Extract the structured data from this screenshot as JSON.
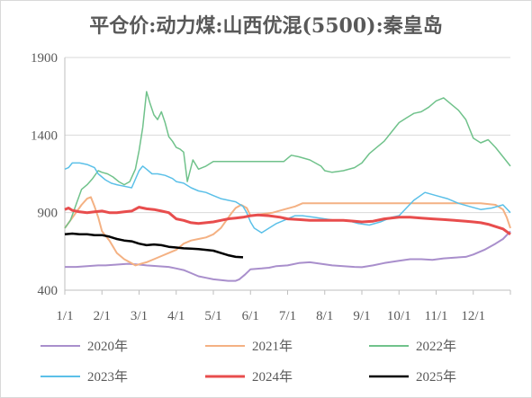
{
  "chart_data": {
    "type": "line",
    "title": "平仓价:动力煤:山西优混(5500):秦皇岛",
    "xlabel": "",
    "ylabel": "",
    "ylim": [
      400,
      1900
    ],
    "yticks": [
      400,
      900,
      1400,
      1900
    ],
    "x_domain": [
      0,
      12
    ],
    "xticks": [
      {
        "label": "1/1",
        "pos": 0
      },
      {
        "label": "2/1",
        "pos": 1
      },
      {
        "label": "3/1",
        "pos": 2
      },
      {
        "label": "4/1",
        "pos": 3
      },
      {
        "label": "5/1",
        "pos": 4
      },
      {
        "label": "6/1",
        "pos": 5
      },
      {
        "label": "7/1",
        "pos": 6
      },
      {
        "label": "8/1",
        "pos": 7
      },
      {
        "label": "9/1",
        "pos": 8
      },
      {
        "label": "10/1",
        "pos": 9
      },
      {
        "label": "11/1",
        "pos": 10
      },
      {
        "label": "12/1",
        "pos": 11
      }
    ],
    "grid": "horizontal",
    "legend_position": "bottom",
    "series": [
      {
        "name": "2020年",
        "color": "#a98fcc",
        "width": 2,
        "x": [
          0,
          0.3,
          0.6,
          0.9,
          1.1,
          1.4,
          1.7,
          2.0,
          2.2,
          2.5,
          2.8,
          3.0,
          3.2,
          3.4,
          3.6,
          3.8,
          4.0,
          4.2,
          4.4,
          4.6,
          4.7,
          4.85,
          5.0,
          5.3,
          5.5,
          5.7,
          6.0,
          6.3,
          6.6,
          6.9,
          7.2,
          7.5,
          7.8,
          8.0,
          8.3,
          8.6,
          9.0,
          9.3,
          9.6,
          9.9,
          10.2,
          10.5,
          10.8,
          11.0,
          11.3,
          11.6,
          11.8,
          12.0
        ],
        "y": [
          550,
          550,
          555,
          560,
          560,
          565,
          570,
          565,
          560,
          555,
          550,
          540,
          530,
          510,
          490,
          480,
          470,
          465,
          460,
          460,
          470,
          500,
          535,
          540,
          545,
          555,
          560,
          575,
          580,
          570,
          560,
          555,
          550,
          548,
          560,
          575,
          590,
          600,
          600,
          595,
          605,
          610,
          615,
          630,
          660,
          700,
          730,
          780
        ]
      },
      {
        "name": "2021年",
        "color": "#f4b183",
        "width": 2,
        "x": [
          0,
          0.15,
          0.3,
          0.45,
          0.6,
          0.7,
          0.8,
          0.9,
          1.0,
          1.2,
          1.4,
          1.6,
          1.75,
          1.9,
          2.05,
          2.2,
          2.4,
          2.6,
          2.8,
          3.0,
          3.2,
          3.4,
          3.6,
          3.8,
          4.0,
          4.2,
          4.35,
          4.5,
          4.6,
          4.75,
          4.9,
          5.0,
          5.3,
          5.6,
          5.9,
          6.2,
          6.4,
          6.8,
          7.2,
          7.6,
          8.0,
          8.4,
          8.8,
          9.2,
          9.6,
          10.0,
          10.4,
          10.8,
          11.2,
          11.6,
          11.8,
          11.9,
          12.0
        ],
        "y": [
          800,
          850,
          900,
          950,
          990,
          1000,
          940,
          870,
          780,
          720,
          640,
          600,
          580,
          560,
          570,
          580,
          600,
          620,
          640,
          660,
          700,
          720,
          730,
          740,
          760,
          800,
          850,
          900,
          930,
          950,
          930,
          880,
          890,
          900,
          920,
          940,
          960,
          960,
          960,
          960,
          960,
          960,
          960,
          960,
          960,
          960,
          960,
          960,
          960,
          950,
          920,
          870,
          800
        ]
      },
      {
        "name": "2022年",
        "color": "#70c28b",
        "width": 1.5,
        "x": [
          0,
          0.15,
          0.3,
          0.45,
          0.6,
          0.75,
          0.9,
          1.0,
          1.15,
          1.3,
          1.45,
          1.6,
          1.75,
          1.9,
          2.0,
          2.1,
          2.2,
          2.3,
          2.4,
          2.5,
          2.6,
          2.7,
          2.8,
          2.9,
          3.0,
          3.1,
          3.2,
          3.3,
          3.45,
          3.6,
          3.8,
          4.0,
          4.4,
          4.8,
          5.2,
          5.6,
          5.9,
          6.0,
          6.1,
          6.3,
          6.6,
          6.9,
          7.0,
          7.2,
          7.5,
          7.8,
          8.0,
          8.2,
          8.4,
          8.6,
          8.8,
          9.0,
          9.2,
          9.4,
          9.6,
          9.8,
          10.0,
          10.2,
          10.4,
          10.6,
          10.8,
          11.0,
          11.2,
          11.4,
          11.6,
          11.8,
          12.0
        ],
        "y": [
          800,
          850,
          950,
          1050,
          1080,
          1120,
          1170,
          1160,
          1150,
          1130,
          1100,
          1080,
          1100,
          1180,
          1300,
          1450,
          1680,
          1600,
          1530,
          1500,
          1550,
          1480,
          1390,
          1360,
          1320,
          1310,
          1290,
          1100,
          1240,
          1180,
          1200,
          1230,
          1230,
          1230,
          1230,
          1230,
          1230,
          1250,
          1270,
          1260,
          1240,
          1200,
          1170,
          1160,
          1170,
          1190,
          1220,
          1280,
          1320,
          1360,
          1420,
          1480,
          1510,
          1540,
          1550,
          1580,
          1620,
          1640,
          1600,
          1560,
          1500,
          1380,
          1350,
          1370,
          1320,
          1260,
          1200
        ]
      },
      {
        "name": "2023年",
        "color": "#5bc0e8",
        "width": 1.5,
        "x": [
          0,
          0.1,
          0.2,
          0.4,
          0.6,
          0.8,
          0.9,
          1.0,
          1.1,
          1.25,
          1.4,
          1.6,
          1.8,
          2.0,
          2.1,
          2.2,
          2.35,
          2.5,
          2.7,
          2.9,
          3.0,
          3.2,
          3.4,
          3.6,
          3.8,
          4.0,
          4.2,
          4.4,
          4.6,
          4.8,
          4.9,
          5.0,
          5.1,
          5.3,
          5.5,
          5.7,
          5.9,
          6.0,
          6.2,
          6.4,
          6.7,
          7.0,
          7.3,
          7.6,
          7.9,
          8.2,
          8.5,
          8.8,
          9.0,
          9.2,
          9.4,
          9.7,
          10.0,
          10.3,
          10.6,
          10.9,
          11.2,
          11.5,
          11.8,
          12.0
        ],
        "y": [
          1180,
          1190,
          1220,
          1220,
          1210,
          1190,
          1150,
          1130,
          1110,
          1090,
          1080,
          1070,
          1060,
          1170,
          1200,
          1180,
          1150,
          1150,
          1140,
          1120,
          1100,
          1090,
          1060,
          1040,
          1030,
          1010,
          990,
          980,
          970,
          940,
          900,
          840,
          800,
          770,
          800,
          830,
          850,
          860,
          880,
          880,
          870,
          860,
          850,
          850,
          830,
          820,
          840,
          870,
          880,
          930,
          980,
          1030,
          1010,
          990,
          960,
          940,
          920,
          930,
          950,
          900
        ]
      },
      {
        "name": "2024年",
        "color": "#e84d4d",
        "width": 3,
        "x": [
          0,
          0.1,
          0.2,
          0.4,
          0.6,
          0.8,
          1.0,
          1.2,
          1.4,
          1.6,
          1.8,
          2.0,
          2.2,
          2.4,
          2.6,
          2.8,
          3.0,
          3.2,
          3.4,
          3.6,
          3.8,
          4.0,
          4.2,
          4.4,
          4.6,
          4.8,
          5.0,
          5.2,
          5.5,
          5.8,
          6.0,
          6.3,
          6.6,
          6.9,
          7.2,
          7.5,
          7.8,
          8.0,
          8.3,
          8.6,
          9.0,
          9.3,
          9.6,
          9.9,
          10.2,
          10.5,
          10.8,
          11.0,
          11.2,
          11.4,
          11.6,
          11.8,
          12.0
        ],
        "y": [
          920,
          930,
          915,
          905,
          900,
          905,
          910,
          900,
          900,
          905,
          910,
          935,
          925,
          920,
          910,
          900,
          860,
          850,
          835,
          830,
          835,
          840,
          850,
          860,
          865,
          870,
          880,
          885,
          880,
          870,
          860,
          855,
          850,
          850,
          850,
          850,
          845,
          840,
          845,
          860,
          870,
          870,
          865,
          860,
          855,
          850,
          845,
          840,
          835,
          825,
          810,
          795,
          760
        ]
      },
      {
        "name": "2025年",
        "color": "#000000",
        "width": 2.5,
        "x": [
          0,
          0.2,
          0.4,
          0.6,
          0.8,
          1.0,
          1.2,
          1.4,
          1.6,
          1.8,
          2.0,
          2.2,
          2.4,
          2.6,
          2.8,
          3.0,
          3.2,
          3.4,
          3.6,
          3.8,
          4.0,
          4.2,
          4.4,
          4.6,
          4.8
        ],
        "y": [
          760,
          765,
          760,
          760,
          755,
          755,
          745,
          730,
          720,
          715,
          700,
          690,
          695,
          690,
          680,
          675,
          670,
          668,
          665,
          660,
          655,
          640,
          625,
          615,
          612
        ]
      }
    ]
  }
}
